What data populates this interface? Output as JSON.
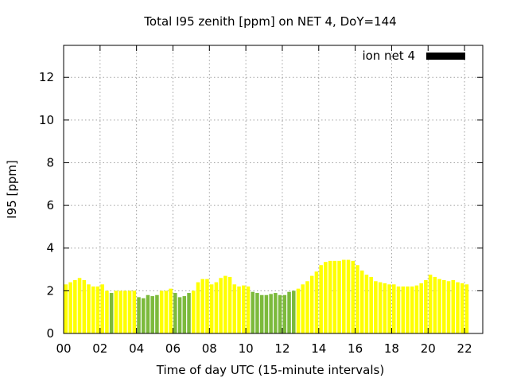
{
  "chart_data": {
    "type": "bar",
    "title": "Total I95 zenith [ppm] on NET 4, DoY=144",
    "xlabel": "Time of day UTC (15-minute intervals)",
    "ylabel": "I95 [ppm]",
    "xlim": [
      0,
      23
    ],
    "ylim": [
      0,
      13.5
    ],
    "xticks": [
      "00",
      "02",
      "04",
      "06",
      "08",
      "10",
      "12",
      "14",
      "16",
      "18",
      "20",
      "22"
    ],
    "yticks": [
      "0",
      "2",
      "4",
      "6",
      "8",
      "10",
      "12"
    ],
    "grid": true,
    "legend": {
      "position": "top-right",
      "label": "ion net 4",
      "color": "#000000"
    },
    "colors": {
      "high": "#ffff00",
      "low": "#7cba3c"
    },
    "interval_hours": 0.25,
    "series": [
      {
        "values": [
          2.3,
          2.4,
          2.5,
          2.6,
          2.5,
          2.3,
          2.2,
          2.2,
          2.3,
          2.0,
          1.9,
          2.0,
          2.0,
          2.0,
          2.0,
          2.0,
          1.7,
          1.65,
          1.8,
          1.75,
          1.8,
          2.0,
          2.0,
          2.1,
          1.9,
          1.7,
          1.75,
          1.9,
          2.0,
          2.4,
          2.55,
          2.55,
          2.3,
          2.4,
          2.6,
          2.7,
          2.65,
          2.3,
          2.2,
          2.25,
          2.2,
          1.95,
          1.9,
          1.8,
          1.8,
          1.85,
          1.9,
          1.8,
          1.8,
          1.95,
          2.0,
          2.1,
          2.3,
          2.45,
          2.7,
          2.9,
          3.2,
          3.35,
          3.4,
          3.4,
          3.4,
          3.45,
          3.45,
          3.4,
          3.2,
          2.95,
          2.75,
          2.65,
          2.45,
          2.4,
          2.35,
          2.3,
          2.3,
          2.2,
          2.2,
          2.2,
          2.2,
          2.25,
          2.35,
          2.5,
          2.75,
          2.65,
          2.55,
          2.5,
          2.45,
          2.5,
          2.4,
          2.35,
          2.3
        ],
        "flags": [
          "high",
          "high",
          "high",
          "high",
          "high",
          "high",
          "high",
          "high",
          "high",
          "high",
          "low",
          "high",
          "high",
          "high",
          "high",
          "high",
          "low",
          "low",
          "low",
          "low",
          "low",
          "high",
          "high",
          "high",
          "low",
          "low",
          "low",
          "low",
          "high",
          "high",
          "high",
          "high",
          "high",
          "high",
          "high",
          "high",
          "high",
          "high",
          "high",
          "high",
          "high",
          "low",
          "low",
          "low",
          "low",
          "low",
          "low",
          "low",
          "low",
          "low",
          "low",
          "high",
          "high",
          "high",
          "high",
          "high",
          "high",
          "high",
          "high",
          "high",
          "high",
          "high",
          "high",
          "high",
          "high",
          "high",
          "high",
          "high",
          "high",
          "high",
          "high",
          "high",
          "high",
          "high",
          "high",
          "high",
          "high",
          "high",
          "high",
          "high",
          "high",
          "high",
          "high",
          "high",
          "high",
          "high",
          "high",
          "high",
          "high"
        ]
      }
    ]
  }
}
